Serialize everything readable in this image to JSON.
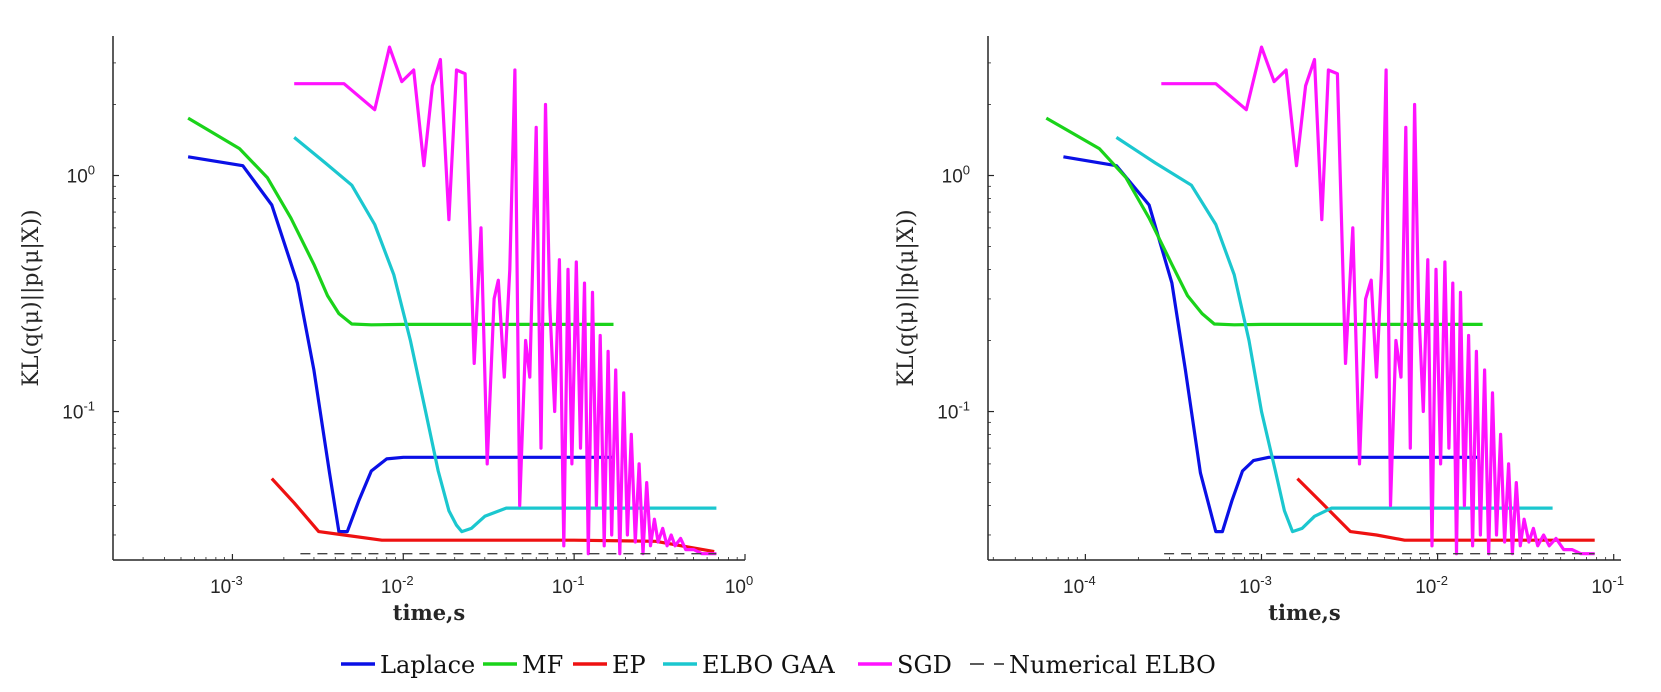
{
  "chart_data": {
    "legend": [
      {
        "name": "Laplace",
        "color": "#0a10e6",
        "style": "solid"
      },
      {
        "name": "MF",
        "color": "#1ad31a",
        "style": "solid"
      },
      {
        "name": "EP",
        "color": "#ee1111",
        "style": "solid"
      },
      {
        "name": "ELBO GAA",
        "color": "#1bc7cf",
        "style": "solid"
      },
      {
        "name": "SGD",
        "color": "#ff12ff",
        "style": "solid"
      },
      {
        "name": "Numerical ELBO",
        "color": "#444444",
        "style": "dashed"
      }
    ],
    "panels": [
      {
        "type": "line",
        "xscale": "log",
        "yscale": "log",
        "xlim": [
          0.0002,
          1.0
        ],
        "ylim": [
          0.0235,
          3.9
        ],
        "xlabel": "time,s",
        "ylabel": "KL(q(μ)||p(μ|X))",
        "xticks": [
          {
            "v": 0.001,
            "b": "10",
            "e": "-3"
          },
          {
            "v": 0.01,
            "b": "10",
            "e": "-2"
          },
          {
            "v": 0.1,
            "b": "10",
            "e": "-1"
          },
          {
            "v": 1.0,
            "b": "10",
            "e": "0"
          }
        ],
        "yticks": [
          {
            "v": 0.1,
            "b": "10",
            "e": "-1"
          },
          {
            "v": 1.0,
            "b": "10",
            "e": "0"
          }
        ],
        "series": [
          {
            "name": "Laplace",
            "x": [
              0.00055,
              0.00115,
              0.0017,
              0.0024,
              0.003,
              0.0037,
              0.0042,
              0.0047,
              0.0055,
              0.0065,
              0.008,
              0.01,
              0.015,
              0.03,
              0.07,
              0.17
            ],
            "y": [
              1.2,
              1.1,
              0.75,
              0.35,
              0.15,
              0.055,
              0.031,
              0.031,
              0.042,
              0.056,
              0.063,
              0.064,
              0.064,
              0.064,
              0.064,
              0.064
            ]
          },
          {
            "name": "MF",
            "x": [
              0.00055,
              0.0011,
              0.0016,
              0.0022,
              0.003,
              0.0036,
              0.0042,
              0.005,
              0.0065,
              0.01,
              0.03,
              0.1,
              0.17
            ],
            "y": [
              1.75,
              1.3,
              0.98,
              0.66,
              0.42,
              0.31,
              0.26,
              0.235,
              0.233,
              0.234,
              0.234,
              0.234,
              0.234
            ]
          },
          {
            "name": "EP",
            "x": [
              0.0017,
              0.0023,
              0.0032,
              0.0045,
              0.0075,
              0.02,
              0.1,
              0.3,
              0.66
            ],
            "y": [
              0.052,
              0.041,
              0.031,
              0.03,
              0.0285,
              0.0285,
              0.0285,
              0.0282,
              0.0255
            ]
          },
          {
            "name": "ELBO GAA",
            "x": [
              0.0023,
              0.0035,
              0.005,
              0.0068,
              0.0088,
              0.011,
              0.0135,
              0.016,
              0.0185,
              0.0205,
              0.022,
              0.025,
              0.03,
              0.04,
              0.06,
              0.1,
              0.3,
              0.68
            ],
            "y": [
              1.45,
              1.13,
              0.91,
              0.62,
              0.38,
              0.2,
              0.1,
              0.056,
              0.038,
              0.033,
              0.031,
              0.032,
              0.036,
              0.039,
              0.039,
              0.039,
              0.039,
              0.039
            ]
          },
          {
            "name": "SGD",
            "x": [
              0.0023,
              0.0045,
              0.0068,
              0.0083,
              0.0098,
              0.0115,
              0.0132,
              0.0148,
              0.0165,
              0.0185,
              0.0205,
              0.023,
              0.026,
              0.0285,
              0.031,
              0.034,
              0.036,
              0.039,
              0.042,
              0.045,
              0.048,
              0.052,
              0.055,
              0.06,
              0.064,
              0.068,
              0.072,
              0.077,
              0.082,
              0.087,
              0.092,
              0.097,
              0.103,
              0.109,
              0.115,
              0.121,
              0.128,
              0.135,
              0.142,
              0.15,
              0.158,
              0.166,
              0.175,
              0.185,
              0.195,
              0.205,
              0.216,
              0.228,
              0.24,
              0.253,
              0.266,
              0.28,
              0.295,
              0.31,
              0.33,
              0.35,
              0.37,
              0.39,
              0.42,
              0.45,
              0.5,
              0.56,
              0.62,
              0.68
            ],
            "y": [
              2.45,
              2.45,
              1.9,
              3.5,
              2.5,
              2.8,
              1.1,
              2.4,
              3.1,
              0.65,
              2.8,
              2.7,
              0.16,
              0.6,
              0.06,
              0.3,
              0.36,
              0.14,
              0.4,
              2.8,
              0.04,
              0.2,
              0.14,
              1.6,
              0.07,
              2.0,
              0.28,
              0.1,
              0.44,
              0.027,
              0.4,
              0.06,
              0.43,
              0.07,
              0.35,
              0.025,
              0.32,
              0.04,
              0.21,
              0.027,
              0.18,
              0.03,
              0.15,
              0.025,
              0.12,
              0.03,
              0.08,
              0.028,
              0.06,
              0.025,
              0.05,
              0.027,
              0.035,
              0.028,
              0.032,
              0.027,
              0.03,
              0.027,
              0.029,
              0.026,
              0.026,
              0.025,
              0.025,
              0.025
            ]
          },
          {
            "name": "Numerical ELBO",
            "x": [
              0.0025,
              0.68
            ],
            "y": [
              0.025,
              0.025
            ]
          }
        ]
      },
      {
        "type": "line",
        "xscale": "log",
        "yscale": "log",
        "xlim": [
          2.8e-05,
          0.11
        ],
        "ylim": [
          0.0235,
          3.9
        ],
        "xlabel": "time,s",
        "ylabel": "KL(q(μ)||p(μ|X))",
        "xticks": [
          {
            "v": 0.0001,
            "b": "10",
            "e": "-4"
          },
          {
            "v": 0.001,
            "b": "10",
            "e": "-3"
          },
          {
            "v": 0.01,
            "b": "10",
            "e": "-2"
          },
          {
            "v": 0.1,
            "b": "10",
            "e": "-1"
          }
        ],
        "yticks": [
          {
            "v": 0.1,
            "b": "10",
            "e": "-1"
          },
          {
            "v": 1.0,
            "b": "10",
            "e": "0"
          }
        ],
        "series": [
          {
            "name": "Laplace",
            "x": [
              7.5e-05,
              0.00015,
              0.00023,
              0.00031,
              0.00037,
              0.00045,
              0.00055,
              0.0006,
              0.00068,
              0.00078,
              0.0009,
              0.0011,
              0.0015,
              0.003,
              0.008,
              0.017
            ],
            "y": [
              1.2,
              1.1,
              0.75,
              0.35,
              0.15,
              0.055,
              0.031,
              0.031,
              0.042,
              0.056,
              0.062,
              0.064,
              0.064,
              0.064,
              0.064,
              0.064
            ]
          },
          {
            "name": "MF",
            "x": [
              6e-05,
              0.00012,
              0.00017,
              0.00023,
              0.00031,
              0.00038,
              0.00046,
              0.00054,
              0.0007,
              0.001,
              0.003,
              0.01,
              0.018
            ],
            "y": [
              1.75,
              1.3,
              0.98,
              0.66,
              0.42,
              0.31,
              0.26,
              0.235,
              0.233,
              0.234,
              0.234,
              0.234,
              0.234
            ]
          },
          {
            "name": "EP",
            "x": [
              0.0016,
              0.0022,
              0.0032,
              0.0045,
              0.0065,
              0.01,
              0.03,
              0.078
            ],
            "y": [
              0.052,
              0.041,
              0.031,
              0.03,
              0.0285,
              0.0285,
              0.0285,
              0.0285
            ]
          },
          {
            "name": "ELBO GAA",
            "x": [
              0.00015,
              0.00025,
              0.0004,
              0.00055,
              0.0007,
              0.00085,
              0.001,
              0.0012,
              0.00135,
              0.0015,
              0.0017,
              0.002,
              0.0025,
              0.003,
              0.005,
              0.01,
              0.02,
              0.045
            ],
            "y": [
              1.45,
              1.13,
              0.91,
              0.62,
              0.38,
              0.2,
              0.1,
              0.056,
              0.038,
              0.031,
              0.032,
              0.036,
              0.039,
              0.039,
              0.039,
              0.039,
              0.039,
              0.039
            ]
          },
          {
            "name": "SGD",
            "x": [
              0.00027,
              0.00055,
              0.00082,
              0.001,
              0.00118,
              0.00138,
              0.00158,
              0.00178,
              0.002,
              0.0022,
              0.0024,
              0.0027,
              0.003,
              0.0033,
              0.0036,
              0.0039,
              0.0042,
              0.0045,
              0.0048,
              0.0051,
              0.0054,
              0.0058,
              0.0062,
              0.0066,
              0.007,
              0.0074,
              0.0078,
              0.0083,
              0.0088,
              0.0093,
              0.0098,
              0.0104,
              0.011,
              0.0116,
              0.0122,
              0.0128,
              0.0135,
              0.0142,
              0.015,
              0.0158,
              0.0166,
              0.0175,
              0.0185,
              0.0195,
              0.0205,
              0.0216,
              0.0228,
              0.024,
              0.0253,
              0.0266,
              0.028,
              0.0295,
              0.031,
              0.033,
              0.035,
              0.037,
              0.04,
              0.043,
              0.047,
              0.052,
              0.058,
              0.065,
              0.072,
              0.078
            ],
            "y": [
              2.45,
              2.45,
              1.9,
              3.5,
              2.5,
              2.8,
              1.1,
              2.4,
              3.1,
              0.65,
              2.8,
              2.7,
              0.16,
              0.6,
              0.06,
              0.3,
              0.36,
              0.14,
              0.4,
              2.8,
              0.04,
              0.2,
              0.14,
              1.6,
              0.07,
              2.0,
              0.28,
              0.1,
              0.44,
              0.027,
              0.4,
              0.06,
              0.43,
              0.07,
              0.35,
              0.025,
              0.32,
              0.04,
              0.21,
              0.027,
              0.18,
              0.03,
              0.15,
              0.025,
              0.12,
              0.03,
              0.08,
              0.028,
              0.06,
              0.025,
              0.05,
              0.027,
              0.035,
              0.028,
              0.032,
              0.027,
              0.03,
              0.027,
              0.029,
              0.026,
              0.026,
              0.025,
              0.025,
              0.025
            ]
          },
          {
            "name": "Numerical ELBO",
            "x": [
              0.00028,
              0.078
            ],
            "y": [
              0.025,
              0.025
            ]
          }
        ]
      }
    ]
  }
}
